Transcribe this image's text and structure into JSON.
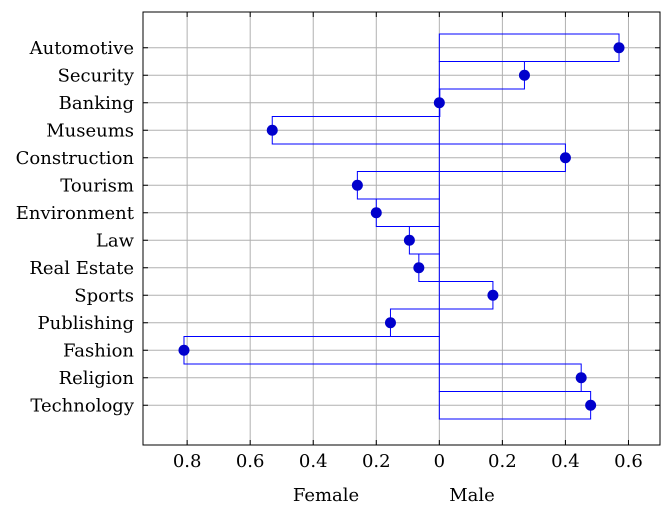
{
  "chart_data": {
    "type": "bar",
    "orientation": "horizontal",
    "categories": [
      "Automotive",
      "Security",
      "Banking",
      "Museums",
      "Construction",
      "Tourism",
      "Environment",
      "Law",
      "Real Estate",
      "Sports",
      "Publishing",
      "Fashion",
      "Religion",
      "Technology"
    ],
    "values": [
      0.57,
      0.27,
      0.0,
      -0.53,
      0.4,
      -0.26,
      -0.2,
      -0.095,
      -0.065,
      0.17,
      -0.155,
      -0.81,
      0.45,
      0.48
    ],
    "xlim": [
      -0.94,
      0.7
    ],
    "x_ticks": [
      -0.8,
      -0.6,
      -0.4,
      -0.2,
      0,
      0.2,
      0.4,
      0.6
    ],
    "x_tick_labels": [
      "0.8",
      "0.6",
      "0.4",
      "0.2",
      "0",
      "0.2",
      "0.4",
      "0.6"
    ],
    "x_axis_side_labels": {
      "left": "Female",
      "right": "Male"
    },
    "grid": true,
    "marker": "circle",
    "colors": {
      "bar_outline": "#0000ff",
      "marker": "#0000cc",
      "grid": "#b0b0b0",
      "axis": "#000000"
    }
  }
}
